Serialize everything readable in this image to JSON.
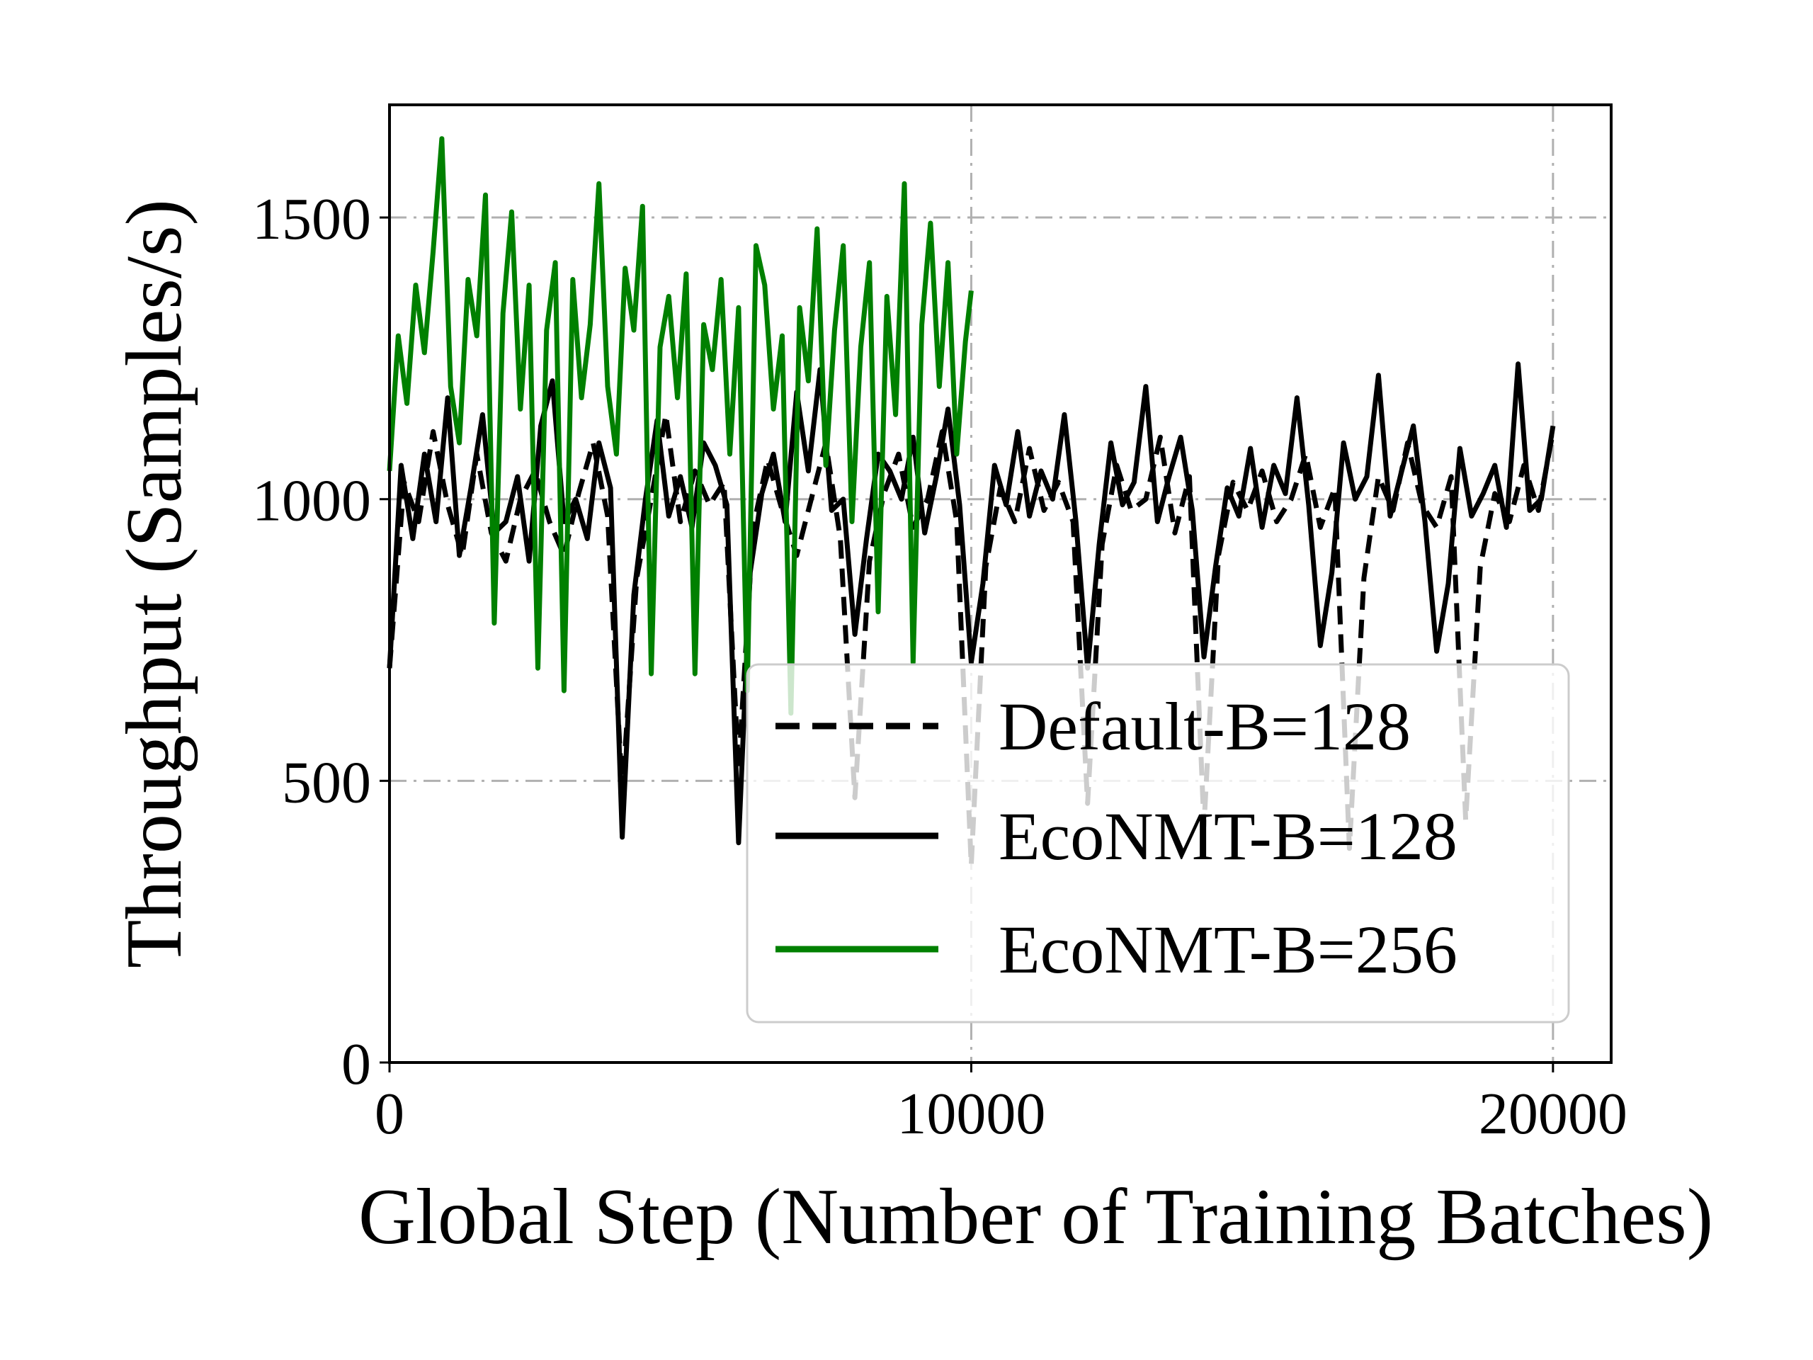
{
  "chart_data": {
    "type": "line",
    "xlabel": "Global Step (Number of Training Batches)",
    "ylabel": "Throughput (Samples/s)",
    "xlim": [
      0,
      21000
    ],
    "ylim": [
      0,
      1700
    ],
    "xticks": [
      0,
      10000,
      20000
    ],
    "xtick_labels": [
      "0",
      "10000",
      "20000"
    ],
    "yticks": [
      0,
      500,
      1000,
      1500
    ],
    "ytick_labels": [
      "0",
      "500",
      "1000",
      "1500"
    ],
    "grid": true,
    "grid_style": "dash-dot, major ticks",
    "legend_position": "lower-right",
    "series": [
      {
        "name": "Default-B=128",
        "color": "#000000",
        "style": "dashed",
        "x": [
          0,
          250,
          500,
          750,
          1000,
          1250,
          1500,
          1750,
          2000,
          2250,
          2500,
          2750,
          3000,
          3250,
          3500,
          3750,
          4000,
          4250,
          4500,
          4750,
          5000,
          5250,
          5500,
          5750,
          6000,
          6250,
          6500,
          6750,
          7000,
          7250,
          7500,
          7750,
          8000,
          8250,
          8500,
          8750,
          9000,
          9250,
          9500,
          9750,
          10000,
          10250,
          10500,
          10750,
          11000,
          11250,
          11500,
          11750,
          12000,
          12250,
          12500,
          12750,
          13000,
          13250,
          13500,
          13750,
          14000,
          14250,
          14500,
          14750,
          15000,
          15250,
          15500,
          15750,
          16000,
          16250,
          16500,
          16750,
          17000,
          17250,
          17500,
          17750,
          18000,
          18250,
          18500,
          18750,
          19000,
          19250,
          19500,
          19750,
          20000
        ],
        "y": [
          700,
          1030,
          960,
          1120,
          990,
          900,
          1080,
          940,
          890,
          1000,
          1050,
          960,
          900,
          1010,
          1100,
          970,
          480,
          860,
          1000,
          1150,
          960,
          1050,
          990,
          1030,
          520,
          950,
          1070,
          980,
          900,
          1000,
          1100,
          930,
          470,
          890,
          1010,
          1080,
          950,
          1000,
          1120,
          960,
          350,
          880,
          1020,
          960,
          1090,
          980,
          1030,
          960,
          460,
          920,
          1060,
          980,
          1000,
          1110,
          940,
          1040,
          420,
          900,
          1030,
          980,
          1050,
          960,
          1000,
          1080,
          950,
          1020,
          380,
          860,
          1040,
          980,
          1100,
          990,
          950,
          1040,
          430,
          880,
          1010,
          960,
          1060,
          980,
          1120
        ]
      },
      {
        "name": "EcoNMT-B=128",
        "color": "#000000",
        "style": "solid",
        "x": [
          0,
          200,
          400,
          600,
          800,
          1000,
          1200,
          1400,
          1600,
          1800,
          2000,
          2200,
          2400,
          2600,
          2800,
          3000,
          3200,
          3400,
          3600,
          3800,
          4000,
          4200,
          4400,
          4600,
          4800,
          5000,
          5200,
          5400,
          5600,
          5800,
          6000,
          6200,
          6400,
          6600,
          6800,
          7000,
          7200,
          7400,
          7600,
          7800,
          8000,
          8200,
          8400,
          8600,
          8800,
          9000,
          9200,
          9400,
          9600,
          9800,
          10000,
          10200,
          10400,
          10600,
          10800,
          11000,
          11200,
          11400,
          11600,
          11800,
          12000,
          12200,
          12400,
          12600,
          12800,
          13000,
          13200,
          13400,
          13600,
          13800,
          14000,
          14200,
          14400,
          14600,
          14800,
          15000,
          15200,
          15400,
          15600,
          15800,
          16000,
          16200,
          16400,
          16600,
          16800,
          17000,
          17200,
          17400,
          17600,
          17800,
          18000,
          18200,
          18400,
          18600,
          18800,
          19000,
          19200,
          19400,
          19600,
          19800,
          20000
        ],
        "y": [
          700,
          1060,
          930,
          1080,
          960,
          1180,
          900,
          1020,
          1150,
          940,
          960,
          1040,
          890,
          1130,
          1210,
          960,
          1000,
          930,
          1100,
          1020,
          400,
          830,
          1000,
          1140,
          970,
          1040,
          950,
          1100,
          1060,
          990,
          390,
          870,
          1010,
          1080,
          960,
          1190,
          1050,
          1230,
          980,
          1000,
          760,
          930,
          1080,
          1050,
          1000,
          1110,
          940,
          1040,
          1160,
          990,
          710,
          850,
          1060,
          990,
          1120,
          970,
          1050,
          1000,
          1150,
          960,
          700,
          920,
          1100,
          990,
          1030,
          1200,
          960,
          1040,
          1110,
          980,
          720,
          880,
          1020,
          970,
          1090,
          950,
          1060,
          1010,
          1180,
          990,
          740,
          870,
          1100,
          1000,
          1040,
          1220,
          970,
          1050,
          1130,
          960,
          730,
          850,
          1090,
          970,
          1010,
          1060,
          950,
          1240,
          980,
          1000,
          1130
        ]
      },
      {
        "name": "EcoNMT-B=256",
        "color": "#008000",
        "style": "solid",
        "x": [
          0,
          150,
          300,
          450,
          600,
          750,
          900,
          1050,
          1200,
          1350,
          1500,
          1650,
          1800,
          1950,
          2100,
          2250,
          2400,
          2550,
          2700,
          2850,
          3000,
          3150,
          3300,
          3450,
          3600,
          3750,
          3900,
          4050,
          4200,
          4350,
          4500,
          4650,
          4800,
          4950,
          5100,
          5250,
          5400,
          5550,
          5700,
          5850,
          6000,
          6150,
          6300,
          6450,
          6600,
          6750,
          6900,
          7050,
          7200,
          7350,
          7500,
          7650,
          7800,
          7950,
          8100,
          8250,
          8400,
          8550,
          8700,
          8850,
          9000,
          9150,
          9300,
          9450,
          9600,
          9750,
          9900,
          10000
        ],
        "y": [
          1050,
          1290,
          1170,
          1380,
          1260,
          1440,
          1640,
          1200,
          1100,
          1390,
          1290,
          1540,
          780,
          1330,
          1510,
          1160,
          1380,
          700,
          1300,
          1420,
          660,
          1390,
          1180,
          1310,
          1560,
          1200,
          1080,
          1410,
          1300,
          1520,
          690,
          1270,
          1360,
          1180,
          1400,
          690,
          1310,
          1230,
          1390,
          1080,
          1340,
          660,
          1450,
          1380,
          1160,
          1290,
          620,
          1340,
          1210,
          1480,
          1060,
          1300,
          1450,
          960,
          1270,
          1420,
          800,
          1360,
          1150,
          1560,
          710,
          1310,
          1490,
          1200,
          1420,
          1080,
          1280,
          1370
        ]
      }
    ]
  }
}
